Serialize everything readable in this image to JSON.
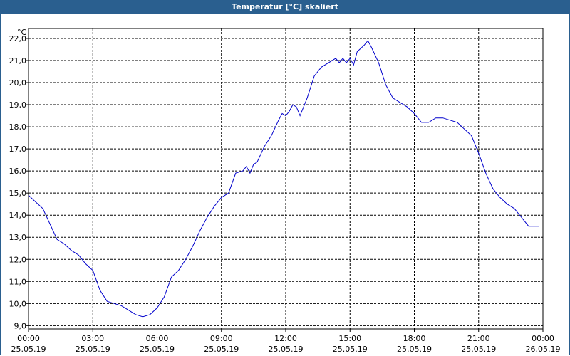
{
  "window": {
    "title": "Temperatur [°C] skaliert"
  },
  "colors": {
    "titlebar": "#2a5f8f",
    "series": "#0000cc",
    "grid": "#000000",
    "axis": "#000000"
  },
  "chart_data": {
    "type": "line",
    "title": "Temperatur [°C] skaliert",
    "ylabel": "°C",
    "xlabel": "",
    "xlim": [
      "25.05.19 00:00",
      "26.05.19 00:00"
    ],
    "ylim": [
      8.85,
      22.45
    ],
    "grid": true,
    "yticks": [
      {
        "value": 9.0,
        "label": "9,0"
      },
      {
        "value": 10.0,
        "label": "10,0"
      },
      {
        "value": 11.0,
        "label": "11,0"
      },
      {
        "value": 12.0,
        "label": "12,0"
      },
      {
        "value": 13.0,
        "label": "13,0"
      },
      {
        "value": 14.0,
        "label": "14,0"
      },
      {
        "value": 15.0,
        "label": "15,0"
      },
      {
        "value": 16.0,
        "label": "16,0"
      },
      {
        "value": 17.0,
        "label": "17,0"
      },
      {
        "value": 18.0,
        "label": "18,0"
      },
      {
        "value": 19.0,
        "label": "19,0"
      },
      {
        "value": 20.0,
        "label": "20,0"
      },
      {
        "value": 21.0,
        "label": "21,0"
      },
      {
        "value": 22.0,
        "label": "22,0"
      }
    ],
    "xticks": [
      {
        "time": "25.05.19 00:00",
        "label_time": "00:00",
        "label_date": "25.05.19"
      },
      {
        "time": "25.05.19 03:00",
        "label_time": "03:00",
        "label_date": "25.05.19"
      },
      {
        "time": "25.05.19 06:00",
        "label_time": "06:00",
        "label_date": "25.05.19"
      },
      {
        "time": "25.05.19 09:00",
        "label_time": "09:00",
        "label_date": "25.05.19"
      },
      {
        "time": "25.05.19 12:00",
        "label_time": "12:00",
        "label_date": "25.05.19"
      },
      {
        "time": "25.05.19 15:00",
        "label_time": "15:00",
        "label_date": "25.05.19"
      },
      {
        "time": "25.05.19 18:00",
        "label_time": "18:00",
        "label_date": "25.05.19"
      },
      {
        "time": "25.05.19 21:00",
        "label_time": "21:00",
        "label_date": "25.05.19"
      },
      {
        "time": "26.05.19 00:00",
        "label_time": "00:00",
        "label_date": "26.05.19"
      }
    ],
    "series": [
      {
        "x": [
          "25.05.19 00:00",
          "25.05.19 00:20",
          "25.05.19 00:40",
          "25.05.19 01:00",
          "25.05.19 01:20",
          "25.05.19 01:40",
          "25.05.19 02:00",
          "25.05.19 02:20",
          "25.05.19 02:40",
          "25.05.19 03:00",
          "25.05.19 03:20",
          "25.05.19 03:40",
          "25.05.19 04:00",
          "25.05.19 04:20",
          "25.05.19 04:40",
          "25.05.19 05:00",
          "25.05.19 05:20",
          "25.05.19 05:40",
          "25.05.19 06:00",
          "25.05.19 06:20",
          "25.05.19 06:40",
          "25.05.19 07:00",
          "25.05.19 07:20",
          "25.05.19 07:40",
          "25.05.19 08:00",
          "25.05.19 08:20",
          "25.05.19 08:40",
          "25.05.19 09:00",
          "25.05.19 09:20",
          "25.05.19 09:40",
          "25.05.19 10:00",
          "25.05.19 10:10",
          "25.05.19 10:20",
          "25.05.19 10:30",
          "25.05.19 10:40",
          "25.05.19 11:00",
          "25.05.19 11:20",
          "25.05.19 11:40",
          "25.05.19 11:50",
          "25.05.19 12:00",
          "25.05.19 12:10",
          "25.05.19 12:20",
          "25.05.19 12:30",
          "25.05.19 12:40",
          "25.05.19 13:00",
          "25.05.19 13:20",
          "25.05.19 13:40",
          "25.05.19 14:00",
          "25.05.19 14:20",
          "25.05.19 14:30",
          "25.05.19 14:40",
          "25.05.19 14:50",
          "25.05.19 15:00",
          "25.05.19 15:10",
          "25.05.19 15:20",
          "25.05.19 15:40",
          "25.05.19 15:50",
          "25.05.19 16:00",
          "25.05.19 16:20",
          "25.05.19 16:40",
          "25.05.19 17:00",
          "25.05.19 17:20",
          "25.05.19 17:40",
          "25.05.19 18:00",
          "25.05.19 18:20",
          "25.05.19 18:40",
          "25.05.19 19:00",
          "25.05.19 19:20",
          "25.05.19 19:40",
          "25.05.19 20:00",
          "25.05.19 20:20",
          "25.05.19 20:40",
          "25.05.19 21:00",
          "25.05.19 21:20",
          "25.05.19 21:40",
          "25.05.19 22:00",
          "25.05.19 22:20",
          "25.05.19 22:40",
          "25.05.19 23:00",
          "25.05.19 23:20",
          "25.05.19 23:40",
          "25.05.19 23:50"
        ],
        "values": [
          14.9,
          14.6,
          14.3,
          13.6,
          12.9,
          12.7,
          12.4,
          12.2,
          11.8,
          11.5,
          10.6,
          10.1,
          10.0,
          9.9,
          9.7,
          9.5,
          9.4,
          9.5,
          9.8,
          10.3,
          11.2,
          11.5,
          12.0,
          12.6,
          13.3,
          13.9,
          14.4,
          14.8,
          15.0,
          15.9,
          16.0,
          16.2,
          15.9,
          16.3,
          16.4,
          17.1,
          17.6,
          18.3,
          18.6,
          18.5,
          18.7,
          19.0,
          18.9,
          18.5,
          19.3,
          20.3,
          20.7,
          20.9,
          21.1,
          20.9,
          21.1,
          20.9,
          21.1,
          20.8,
          21.4,
          21.7,
          21.9,
          21.6,
          20.9,
          19.9,
          19.3,
          19.1,
          18.9,
          18.6,
          18.2,
          18.2,
          18.4,
          18.4,
          18.3,
          18.2,
          17.9,
          17.6,
          16.8,
          15.9,
          15.2,
          14.8,
          14.5,
          14.3,
          13.9,
          13.5,
          13.5,
          13.5
        ]
      }
    ]
  }
}
